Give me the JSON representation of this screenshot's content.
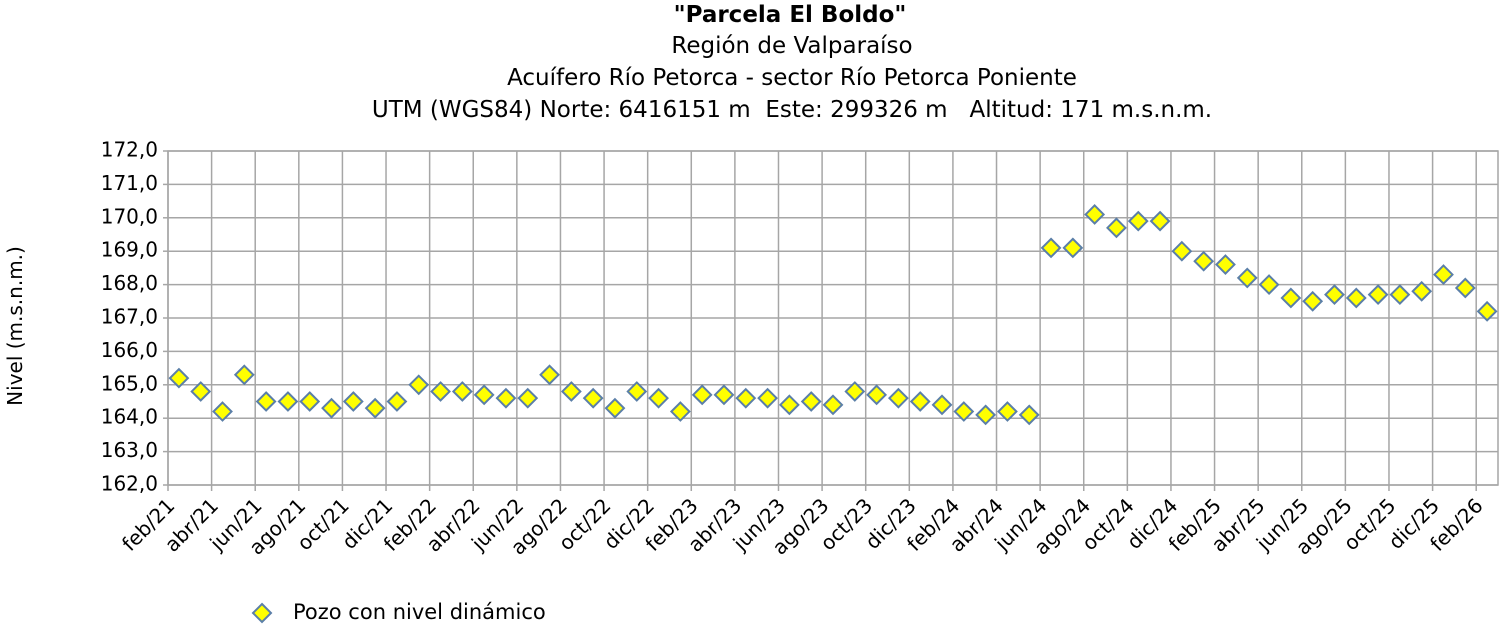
{
  "chart_data": {
    "type": "scatter",
    "title": "\"Parcela El Boldo\"",
    "subtitle": [
      "Región de Valparaíso",
      "Acuífero Río Petorca - sector Río Petorca Poniente",
      "UTM (WGS84) Norte: 6416151 m  Este: 299326 m   Altitud: 171 m.s.n.m."
    ],
    "y_label": "Nivel (m.s.n.m.)",
    "categories": [
      "feb/21",
      null,
      "abr/21",
      null,
      "jun/21",
      null,
      "ago/21",
      null,
      "oct/21",
      null,
      "dic/21",
      null,
      "feb/22",
      null,
      "abr/22",
      null,
      "jun/22",
      null,
      "ago/22",
      null,
      "oct/22",
      null,
      "dic/22",
      null,
      "feb/23",
      null,
      "abr/23",
      null,
      "jun/23",
      null,
      "ago/23",
      null,
      "oct/23",
      null,
      "dic/23",
      null,
      "feb/24",
      null,
      "abr/24",
      null,
      "jun/24",
      null,
      "ago/24",
      null,
      "oct/24",
      null,
      "dic/24",
      null,
      "feb/25",
      null,
      "abr/25",
      null,
      "jun/25",
      null,
      "ago/25",
      null,
      "oct/25",
      null,
      "dic/25",
      null,
      "feb/26"
    ],
    "series": [
      {
        "name": "Pozo con nivel dinámico",
        "color": "#ffff00",
        "edge_color": "#5b7fa8",
        "values": [
          165.2,
          164.8,
          164.2,
          165.3,
          164.5,
          164.5,
          164.5,
          164.3,
          164.5,
          164.3,
          164.5,
          165.0,
          164.8,
          164.8,
          164.7,
          164.6,
          164.6,
          165.3,
          164.8,
          164.6,
          164.3,
          164.8,
          164.6,
          164.2,
          164.7,
          164.7,
          164.6,
          164.6,
          164.4,
          164.5,
          164.4,
          164.8,
          164.7,
          164.6,
          164.5,
          164.4,
          164.2,
          164.1,
          164.2,
          164.1,
          169.1,
          169.1,
          170.1,
          169.7,
          169.9,
          169.9,
          169.0,
          168.7,
          168.6,
          168.2,
          168.0,
          167.6,
          167.5,
          167.7,
          167.6,
          167.7,
          167.7,
          167.8,
          168.3,
          167.9,
          167.2
        ]
      }
    ],
    "ylim": [
      162,
      172
    ],
    "yticks": [
      {
        "value": 162,
        "label": "162,0"
      },
      {
        "value": 163,
        "label": "163,0"
      },
      {
        "value": 164,
        "label": "164,0"
      },
      {
        "value": 165,
        "label": "165,0"
      },
      {
        "value": 166,
        "label": "166,0"
      },
      {
        "value": 167,
        "label": "167,0"
      },
      {
        "value": 168,
        "label": "168,0"
      },
      {
        "value": 169,
        "label": "169,0"
      },
      {
        "value": 170,
        "label": "170,0"
      },
      {
        "value": 171,
        "label": "171,0"
      },
      {
        "value": 172,
        "label": "172,0"
      }
    ],
    "grid": true,
    "legend": "bottom-left"
  }
}
